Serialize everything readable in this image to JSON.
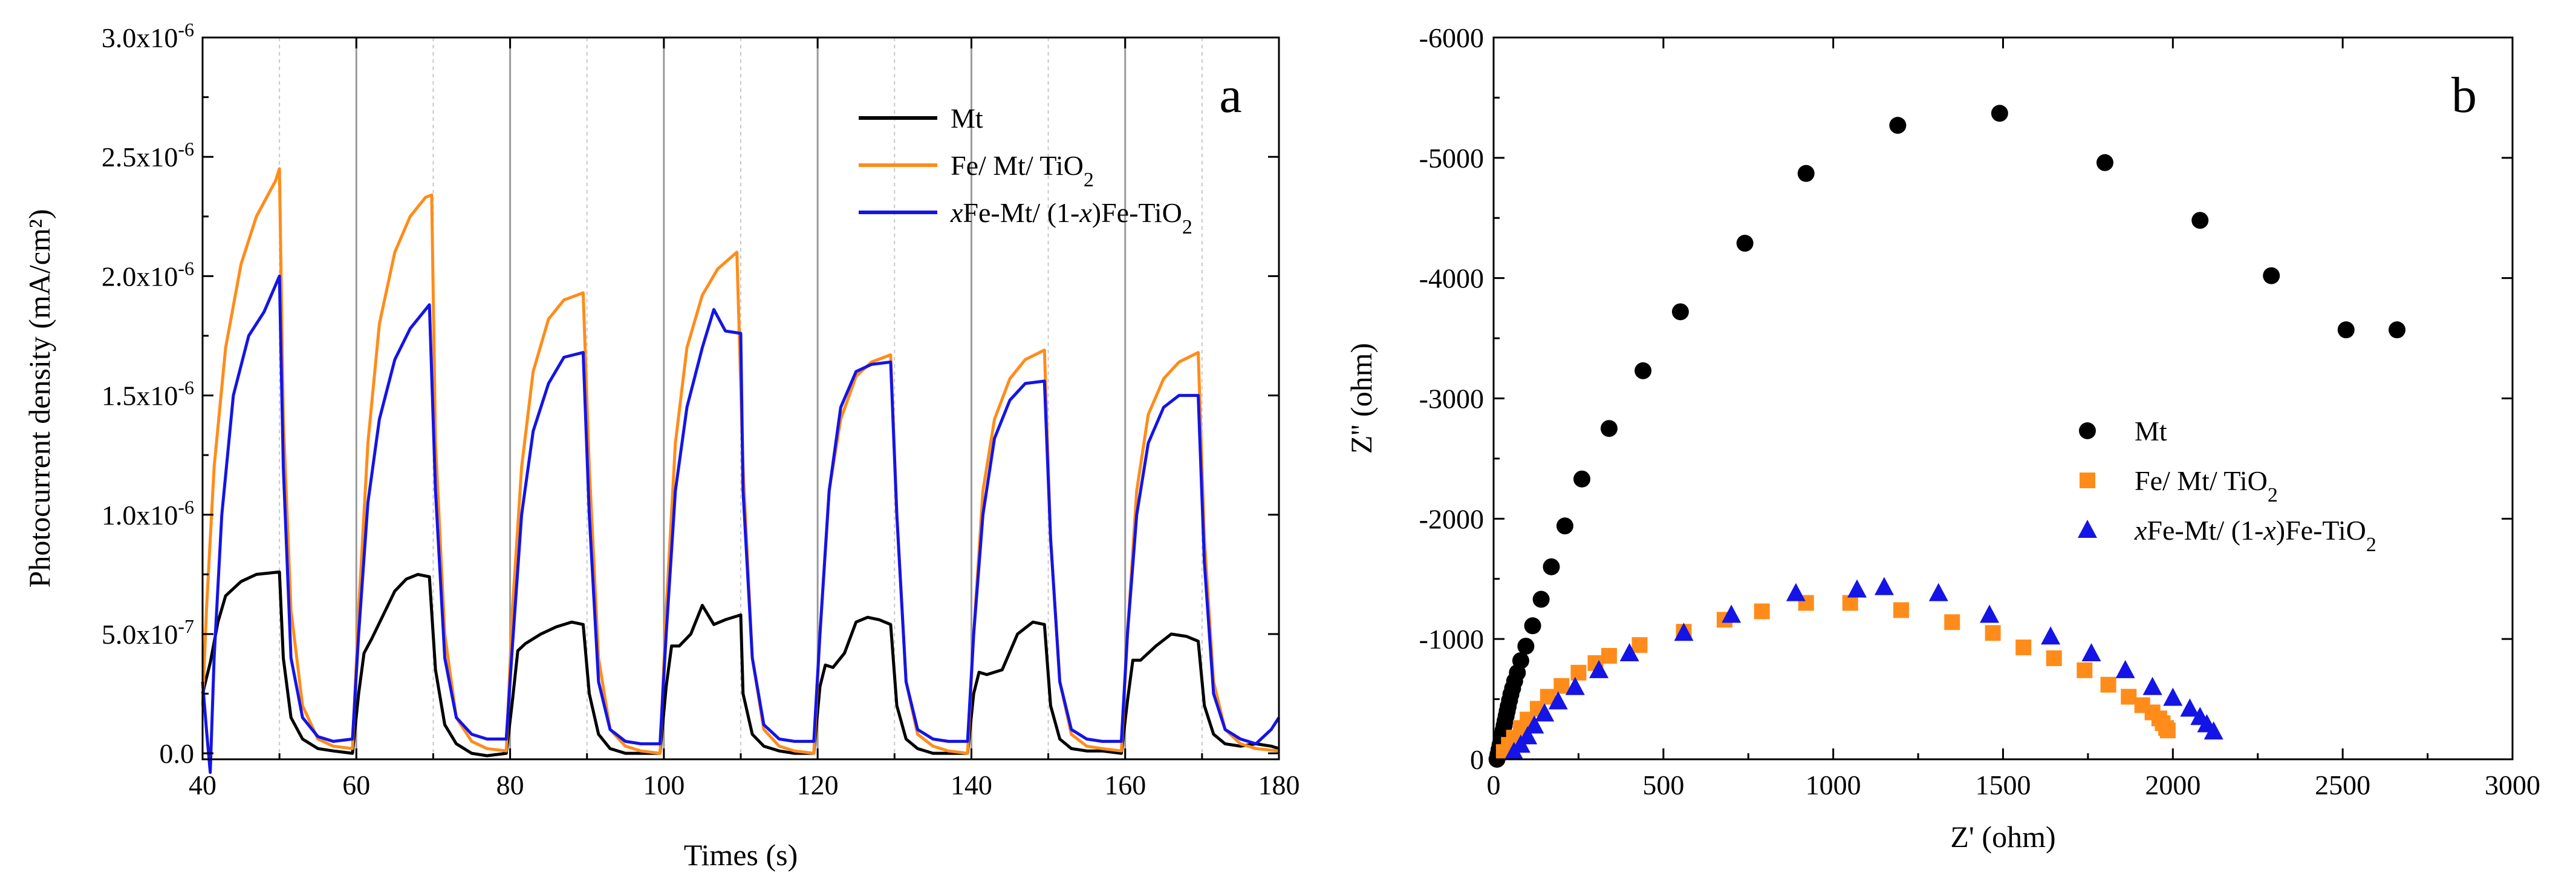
{
  "chart_data": [
    {
      "panel_label": "a",
      "type": "line",
      "xlabel": "Times (s)",
      "ylabel": "Photocurrent density (mA/cm²)",
      "xlim": [
        40,
        180
      ],
      "ylim": [
        -2.5e-08,
        3e-06
      ],
      "xticks": [
        40,
        60,
        80,
        100,
        120,
        140,
        160,
        180
      ],
      "yticks": [
        0,
        5e-07,
        1e-06,
        1.5e-06,
        2e-06,
        2.5e-06,
        3e-06
      ],
      "ytick_labels": [
        {
          "mant": "0.0",
          "exp": ""
        },
        {
          "mant": "5.0x10",
          "exp": "-7"
        },
        {
          "mant": "1.0x10",
          "exp": "-6"
        },
        {
          "mant": "1.5x10",
          "exp": "-6"
        },
        {
          "mant": "2.0x10",
          "exp": "-6"
        },
        {
          "mant": "2.5x10",
          "exp": "-6"
        },
        {
          "mant": "3.0x10",
          "exp": "-6"
        }
      ],
      "light_on_lines": [
        60,
        80,
        100,
        120,
        140,
        160
      ],
      "light_on_color": "#9a9a9a",
      "light_off_lines": [
        50,
        70,
        90,
        110,
        130,
        150,
        170
      ],
      "light_off_color": "#c8c8c8",
      "legend_position": "upper-right",
      "series": [
        {
          "name": "Mt",
          "color": "#000000",
          "x": [
            40,
            41,
            42,
            43,
            45,
            47,
            50,
            50.5,
            51.5,
            53,
            55,
            57,
            59.5,
            60.3,
            61,
            62,
            63.5,
            65,
            66.5,
            68,
            69.5,
            70.3,
            71.5,
            73,
            75,
            77,
            79.5,
            80.3,
            81,
            82,
            84,
            86,
            88,
            89.5,
            90.3,
            91.5,
            93,
            95,
            97,
            99.5,
            100.3,
            101,
            102,
            103.5,
            105,
            106.5,
            108,
            110,
            110.3,
            111.5,
            113,
            115,
            117,
            119.5,
            120.3,
            121,
            122,
            123.5,
            125,
            126.5,
            128,
            129.5,
            130.3,
            131.5,
            133,
            135,
            137,
            139.5,
            140.3,
            141,
            142,
            144,
            146,
            148,
            149.5,
            150.3,
            151.5,
            153,
            155,
            157,
            159.5,
            160.3,
            161,
            162,
            164,
            166,
            168,
            169.5,
            170.3,
            171.5,
            173,
            175,
            177,
            179,
            180
          ],
          "y": [
            2.5e-07,
            3.8e-07,
            5.5e-07,
            6.6e-07,
            7.2e-07,
            7.5e-07,
            7.6e-07,
            4e-07,
            1.5e-07,
            6e-08,
            2e-08,
            1e-08,
            0,
            2.5e-07,
            4.2e-07,
            4.8e-07,
            5.8e-07,
            6.8e-07,
            7.3e-07,
            7.5e-07,
            7.4e-07,
            3.5e-07,
            1.2e-07,
            4e-08,
            0,
            -1e-08,
            0,
            2.2e-07,
            4.3e-07,
            4.6e-07,
            5e-07,
            5.3e-07,
            5.5e-07,
            5.4e-07,
            2.5e-07,
            8e-08,
            2e-08,
            0,
            0,
            0,
            2.8e-07,
            4.5e-07,
            4.5e-07,
            5e-07,
            6.2e-07,
            5.4e-07,
            5.6e-07,
            5.8e-07,
            2.5e-07,
            8e-08,
            3e-08,
            1e-08,
            0,
            0,
            2.8e-07,
            3.7e-07,
            3.6e-07,
            4.2e-07,
            5.5e-07,
            5.7e-07,
            5.6e-07,
            5.4e-07,
            2e-07,
            6e-08,
            2e-08,
            0,
            0,
            0,
            2.5e-07,
            3.4e-07,
            3.3e-07,
            3.5e-07,
            5e-07,
            5.5e-07,
            5.4e-07,
            2e-07,
            6e-08,
            2e-08,
            1e-08,
            1e-08,
            0,
            2.2e-07,
            3.9e-07,
            3.9e-07,
            4.5e-07,
            5e-07,
            4.9e-07,
            4.7e-07,
            2e-07,
            8e-08,
            4e-08,
            3e-08,
            4e-08,
            3e-08,
            2e-08
          ]
        },
        {
          "name": "Fe/ Mt/ TiO",
          "name_sub": "2",
          "color": "#ff8c1a",
          "x": [
            40,
            40.5,
            41.5,
            43,
            45,
            47,
            49.5,
            50,
            50.5,
            51.5,
            53,
            55,
            57,
            59.5,
            60.3,
            61.5,
            63,
            65,
            67,
            69,
            69.8,
            70.3,
            71.5,
            73,
            75,
            77,
            79.5,
            80.3,
            81.5,
            83,
            85,
            87,
            89.5,
            90.3,
            91.5,
            93,
            95,
            97,
            99.5,
            100.3,
            101.5,
            103,
            105,
            107,
            109.5,
            110.3,
            111.5,
            113,
            115,
            117,
            119.5,
            120.3,
            121.5,
            123,
            125,
            127,
            129.5,
            130.3,
            131.5,
            133,
            135,
            137,
            139.5,
            140.3,
            141.5,
            143,
            145,
            147,
            149.5,
            150.3,
            151.5,
            153,
            155,
            157,
            159.5,
            160.3,
            161.5,
            163,
            165,
            167,
            169.5,
            170.3,
            171.5,
            173,
            175,
            177,
            180
          ],
          "y": [
            2e-07,
            6e-07,
            1.2e-06,
            1.7e-06,
            2.05e-06,
            2.25e-06,
            2.4e-06,
            2.45e-06,
            1.4e-06,
            6e-07,
            2e-07,
            6e-08,
            3e-08,
            2e-08,
            6e-07,
            1.3e-06,
            1.8e-06,
            2.1e-06,
            2.25e-06,
            2.33e-06,
            2.34e-06,
            1.3e-06,
            5e-07,
            1.5e-07,
            5e-08,
            2e-08,
            1e-08,
            6e-07,
            1.2e-06,
            1.6e-06,
            1.82e-06,
            1.9e-06,
            1.93e-06,
            1.2e-06,
            4e-07,
            1e-07,
            3e-08,
            1e-08,
            0,
            6e-07,
            1.3e-06,
            1.7e-06,
            1.92e-06,
            2.03e-06,
            2.1e-06,
            1.2e-06,
            4e-07,
            1e-07,
            3e-08,
            1e-08,
            0,
            5e-07,
            1.1e-06,
            1.4e-06,
            1.58e-06,
            1.64e-06,
            1.67e-06,
            1e-06,
            3e-07,
            8e-08,
            3e-08,
            1e-08,
            0,
            5e-07,
            1.1e-06,
            1.4e-06,
            1.57e-06,
            1.65e-06,
            1.69e-06,
            9e-07,
            3e-07,
            8e-08,
            3e-08,
            2e-08,
            1e-08,
            5e-07,
            1.1e-06,
            1.42e-06,
            1.57e-06,
            1.64e-06,
            1.68e-06,
            9e-07,
            3e-07,
            1e-07,
            4e-08,
            2e-08,
            1e-08
          ]
        },
        {
          "name_italic": "x",
          "name_mid": "Fe-Mt/ (1-",
          "name_italic2": "x",
          "name_rest": ")Fe-TiO",
          "name_sub": "2",
          "color": "#1414e6",
          "x": [
            40,
            40.5,
            41,
            41.5,
            42.5,
            44,
            46,
            48,
            50,
            50.5,
            51.5,
            53,
            55,
            57,
            59.5,
            60.3,
            61.5,
            63,
            65,
            67,
            69.5,
            70.3,
            71.5,
            73,
            75,
            77,
            79.5,
            80.3,
            81.5,
            83,
            85,
            87,
            89.5,
            90.3,
            91.5,
            93,
            95,
            97,
            99.5,
            100.3,
            101.5,
            103,
            105,
            106.5,
            108,
            110,
            110.3,
            111.5,
            113,
            115,
            117,
            119.5,
            120.3,
            121.5,
            123,
            125,
            127,
            129.5,
            130.3,
            131.5,
            133,
            135,
            137,
            139.5,
            140.3,
            141.5,
            143,
            145,
            147,
            149.5,
            150.3,
            151.5,
            153,
            155,
            157,
            159.5,
            160.3,
            161.5,
            163,
            165,
            167,
            169.5,
            170.3,
            171.5,
            173,
            175,
            177,
            179,
            180
          ],
          "y": [
            3e-07,
            1e-07,
            -8e-08,
            4e-07,
            1e-06,
            1.5e-06,
            1.75e-06,
            1.85e-06,
            2e-06,
            1.2e-06,
            4e-07,
            1.5e-07,
            7e-08,
            5e-08,
            6e-08,
            5e-07,
            1.05e-06,
            1.4e-06,
            1.65e-06,
            1.78e-06,
            1.88e-06,
            1.1e-06,
            4e-07,
            1.5e-07,
            8e-08,
            6e-08,
            6e-08,
            4.5e-07,
            1e-06,
            1.35e-06,
            1.55e-06,
            1.66e-06,
            1.68e-06,
            1e-06,
            3e-07,
            1e-07,
            5e-08,
            4e-08,
            4e-08,
            5e-07,
            1.1e-06,
            1.45e-06,
            1.7e-06,
            1.86e-06,
            1.77e-06,
            1.76e-06,
            1.1e-06,
            4e-07,
            1.2e-07,
            6e-08,
            5e-08,
            5e-08,
            5e-07,
            1.1e-06,
            1.45e-06,
            1.6e-06,
            1.63e-06,
            1.64e-06,
            1e-06,
            3e-07,
            1e-07,
            6e-08,
            5e-08,
            5e-08,
            5e-07,
            1e-06,
            1.32e-06,
            1.48e-06,
            1.55e-06,
            1.56e-06,
            9e-07,
            3e-07,
            1e-07,
            6e-08,
            5e-08,
            5e-08,
            5e-07,
            1e-06,
            1.3e-06,
            1.45e-06,
            1.5e-06,
            1.5e-06,
            8e-07,
            2.5e-07,
            1e-07,
            6e-08,
            4e-08,
            1e-07,
            1.5e-07
          ]
        }
      ]
    },
    {
      "panel_label": "b",
      "type": "scatter",
      "xlabel": "Z' (ohm)",
      "ylabel": "Z'' (ohm)",
      "xlim": [
        0,
        3000
      ],
      "ylim": [
        0,
        -6000
      ],
      "xticks": [
        0,
        500,
        1000,
        1500,
        2000,
        2500,
        3000
      ],
      "yticks": [
        0,
        -1000,
        -2000,
        -3000,
        -4000,
        -5000,
        -6000
      ],
      "legend_position": "center-right",
      "series": [
        {
          "name": "Mt",
          "marker": "circle",
          "color": "#000000",
          "x": [
            10,
            13,
            16,
            19,
            22,
            25,
            28,
            31,
            34,
            37,
            40,
            43,
            47,
            51,
            56,
            62,
            70,
            80,
            95,
            115,
            140,
            170,
            210,
            260,
            340,
            440,
            550,
            740,
            920,
            1190,
            1490,
            1800,
            2080,
            2290,
            2510,
            2660
          ],
          "y": [
            0,
            -40,
            -80,
            -120,
            -160,
            -200,
            -240,
            -280,
            -320,
            -360,
            -400,
            -440,
            -490,
            -540,
            -590,
            -650,
            -720,
            -820,
            -940,
            -1110,
            -1330,
            -1600,
            -1940,
            -2330,
            -2750,
            -3230,
            -3720,
            -4290,
            -4870,
            -5270,
            -5370,
            -4960,
            -4480,
            -4020,
            -3570,
            -3570
          ]
        },
        {
          "name": "Fe/ Mt/ TiO",
          "name_sub": "2",
          "marker": "square",
          "color": "#ff8c1a",
          "x": [
            30,
            45,
            60,
            80,
            100,
            130,
            160,
            200,
            250,
            300,
            340,
            430,
            560,
            680,
            790,
            920,
            1050,
            1200,
            1350,
            1470,
            1560,
            1650,
            1740,
            1810,
            1870,
            1910,
            1940,
            1960,
            1970,
            1980,
            1985
          ],
          "y": [
            -60,
            -120,
            -180,
            -260,
            -330,
            -420,
            -520,
            -610,
            -720,
            -800,
            -860,
            -950,
            -1060,
            -1160,
            -1230,
            -1300,
            -1300,
            -1240,
            -1140,
            -1050,
            -930,
            -840,
            -740,
            -620,
            -520,
            -450,
            -390,
            -340,
            -300,
            -260,
            -240
          ]
        },
        {
          "name_italic": "x",
          "name_mid": "Fe-Mt/ (1-",
          "name_italic2": "x",
          "name_rest": ")Fe-TiO",
          "name_sub": "2",
          "marker": "triangle",
          "color": "#1414e6",
          "x": [
            60,
            80,
            100,
            120,
            150,
            190,
            240,
            310,
            400,
            560,
            700,
            890,
            1070,
            1150,
            1310,
            1460,
            1640,
            1760,
            1860,
            1940,
            2000,
            2050,
            2080,
            2100,
            2120
          ],
          "y": [
            -60,
            -120,
            -190,
            -280,
            -380,
            -480,
            -600,
            -740,
            -880,
            -1050,
            -1200,
            -1380,
            -1410,
            -1430,
            -1380,
            -1200,
            -1020,
            -880,
            -740,
            -600,
            -510,
            -420,
            -350,
            -290,
            -230
          ]
        }
      ]
    }
  ]
}
